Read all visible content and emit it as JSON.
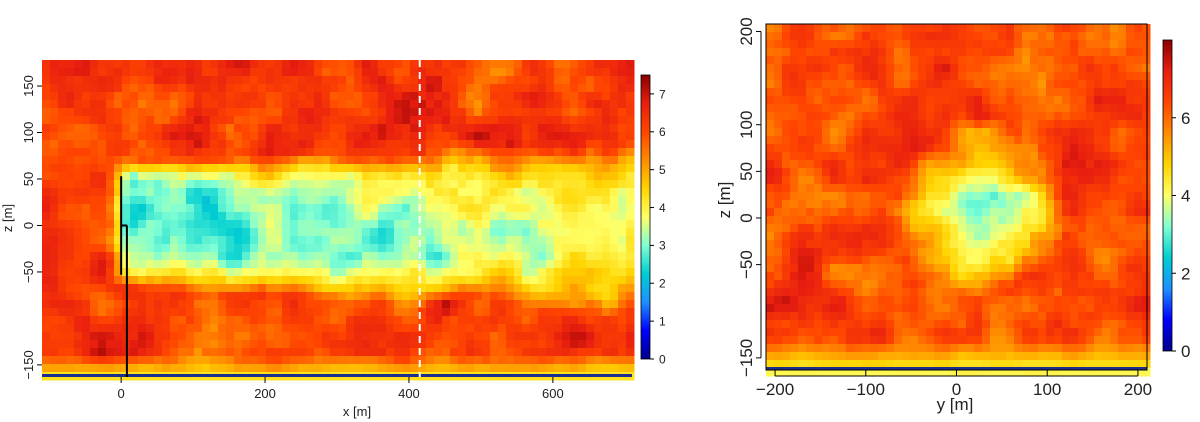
{
  "palette": {
    "scale_stops": [
      "#00008b",
      "#0000ff",
      "#1e90ff",
      "#00ced1",
      "#7fffd4",
      "#ffff66",
      "#ffd400",
      "#ff8c00",
      "#ff4500",
      "#e81e10",
      "#8b0000"
    ]
  },
  "chart_data": [
    {
      "type": "heatmap",
      "title": "",
      "xlabel": "x [m]",
      "ylabel": "z [m]",
      "xlim": [
        -110,
        710
      ],
      "ylim": [
        -163,
        178
      ],
      "xticks": [
        0,
        200,
        400,
        600
      ],
      "yticks": [
        -150,
        -50,
        0,
        50,
        100,
        150
      ],
      "colorbar": {
        "min": 0,
        "max": 7.5,
        "ticks": [
          0,
          1,
          2,
          3,
          4,
          5,
          6,
          7
        ]
      },
      "annotations": [
        {
          "kind": "turbine-rotor-line",
          "x": 0,
          "y_from": -53,
          "y_to": 53
        },
        {
          "kind": "turbine-tower-line",
          "x": 8,
          "y_from": -163,
          "y_to": 0
        },
        {
          "kind": "dashed-section-line",
          "x": 415
        }
      ],
      "field": {
        "background": 6.2,
        "wake": {
          "x0": 0,
          "x1": 710,
          "center_y": 0,
          "half_width": [
            52,
            70
          ],
          "deficit_start": 4.0,
          "deficit_end": 2.2
        },
        "ground_layer": {
          "height": 25,
          "value": 4.2
        }
      }
    },
    {
      "type": "heatmap",
      "title": "",
      "xlabel": "y [m]",
      "ylabel": "z [m]",
      "xlim": [
        -210,
        210
      ],
      "ylim": [
        -163,
        208
      ],
      "xticks": [
        -200,
        -100,
        0,
        100,
        200
      ],
      "yticks": [
        -150,
        -50,
        0,
        50,
        100,
        200
      ],
      "colorbar": {
        "min": 0,
        "max": 8,
        "ticks": [
          0,
          2,
          4,
          6
        ]
      },
      "field": {
        "background": 6.4,
        "wake": {
          "center_y": 30,
          "center_z": 10,
          "radius": 60,
          "deficit": 2.8
        },
        "ground_layer": {
          "height": 35,
          "value": 4.3
        }
      }
    }
  ]
}
